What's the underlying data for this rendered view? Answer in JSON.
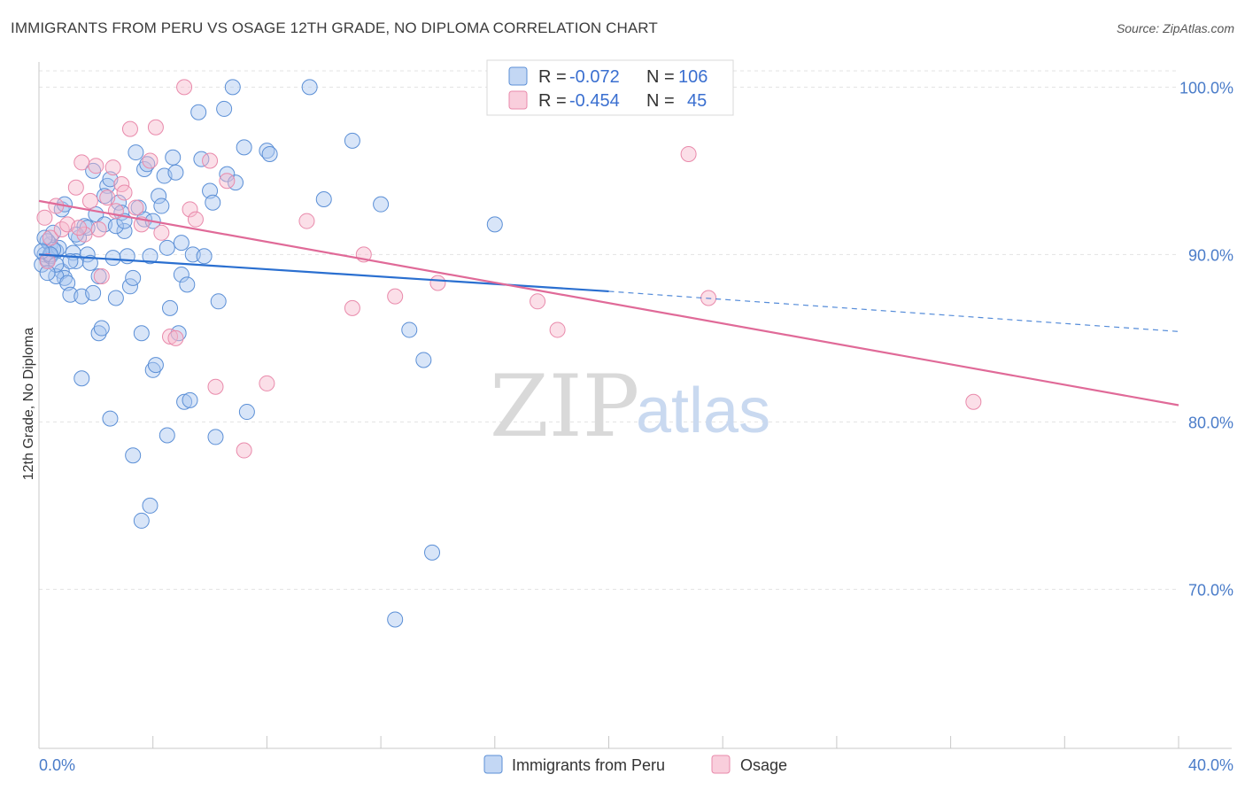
{
  "title": "IMMIGRANTS FROM PERU VS OSAGE 12TH GRADE, NO DIPLOMA CORRELATION CHART",
  "source": "Source: ZipAtlas.com",
  "watermark": {
    "zip": "ZIP",
    "atlas": "atlas"
  },
  "colors": {
    "blue_fill": "#a9c6f0",
    "blue_stroke": "#5b8fd6",
    "blue_line": "#2a6fd0",
    "pink_fill": "#f6b9cd",
    "pink_stroke": "#e98aab",
    "pink_line": "#e06a98",
    "grid": "#e3e3e3",
    "tick_text": "#4a7cc9"
  },
  "legend": {
    "rows": [
      {
        "r_label": "R =",
        "r_value": "-0.072",
        "n_label": "N =",
        "n_value": "106"
      },
      {
        "r_label": "R =",
        "r_value": "-0.454",
        "n_label": "N =",
        "n_value": "45"
      }
    ]
  },
  "bottom_legend": [
    "Immigrants from Peru",
    "Osage"
  ],
  "chart_data": {
    "type": "scatter",
    "xlabel": "",
    "ylabel": "12th Grade, No Diploma",
    "xlim": [
      0,
      40
    ],
    "ylim": [
      60.5,
      101.5
    ],
    "x_tick_labels": [
      "0.0%",
      "40.0%"
    ],
    "y_ticks": [
      70,
      80,
      90,
      100
    ],
    "y_tick_labels": [
      "70.0%",
      "80.0%",
      "90.0%",
      "100.0%"
    ],
    "grid": true,
    "series": [
      {
        "name": "Immigrants from Peru",
        "points": [
          [
            0.1,
            89.4
          ],
          [
            0.2,
            90.0
          ],
          [
            0.3,
            89.7
          ],
          [
            0.4,
            90.6
          ],
          [
            0.5,
            91.3
          ],
          [
            0.3,
            90.8
          ],
          [
            0.6,
            90.2
          ],
          [
            0.4,
            89.9
          ],
          [
            0.7,
            90.4
          ],
          [
            0.8,
            89.0
          ],
          [
            0.9,
            88.6
          ],
          [
            0.6,
            88.7
          ],
          [
            1.0,
            88.3
          ],
          [
            1.1,
            87.6
          ],
          [
            1.2,
            90.1
          ],
          [
            1.3,
            89.6
          ],
          [
            1.4,
            91.0
          ],
          [
            1.5,
            87.5
          ],
          [
            1.6,
            91.7
          ],
          [
            1.7,
            90.0
          ],
          [
            1.8,
            89.5
          ],
          [
            1.9,
            87.7
          ],
          [
            2.0,
            92.4
          ],
          [
            2.1,
            85.3
          ],
          [
            2.2,
            85.6
          ],
          [
            2.3,
            91.8
          ],
          [
            2.4,
            94.1
          ],
          [
            2.5,
            94.5
          ],
          [
            2.6,
            89.8
          ],
          [
            2.7,
            87.4
          ],
          [
            2.8,
            93.1
          ],
          [
            2.9,
            92.5
          ],
          [
            3.0,
            91.4
          ],
          [
            3.1,
            89.9
          ],
          [
            3.2,
            88.1
          ],
          [
            3.3,
            88.6
          ],
          [
            3.4,
            96.1
          ],
          [
            3.5,
            92.8
          ],
          [
            3.6,
            85.3
          ],
          [
            3.7,
            95.1
          ],
          [
            3.8,
            95.4
          ],
          [
            3.9,
            89.9
          ],
          [
            4.0,
            83.1
          ],
          [
            4.1,
            83.4
          ],
          [
            4.2,
            93.5
          ],
          [
            4.3,
            92.9
          ],
          [
            4.4,
            94.7
          ],
          [
            4.5,
            90.4
          ],
          [
            4.6,
            86.8
          ],
          [
            4.7,
            95.8
          ],
          [
            4.8,
            94.9
          ],
          [
            4.9,
            85.3
          ],
          [
            5.0,
            88.8
          ],
          [
            5.1,
            81.2
          ],
          [
            5.2,
            88.2
          ],
          [
            5.3,
            81.3
          ],
          [
            5.4,
            90.0
          ],
          [
            5.6,
            98.5
          ],
          [
            5.7,
            95.7
          ],
          [
            5.8,
            89.9
          ],
          [
            6.0,
            93.8
          ],
          [
            6.1,
            93.1
          ],
          [
            6.2,
            79.1
          ],
          [
            6.3,
            87.2
          ],
          [
            6.5,
            98.7
          ],
          [
            6.6,
            94.8
          ],
          [
            6.8,
            100.0
          ],
          [
            6.9,
            94.3
          ],
          [
            7.2,
            96.4
          ],
          [
            7.3,
            80.6
          ],
          [
            8.0,
            96.2
          ],
          [
            8.1,
            96.0
          ],
          [
            9.5,
            100.0
          ],
          [
            10.0,
            93.3
          ],
          [
            11.0,
            96.8
          ],
          [
            12.0,
            93.0
          ],
          [
            13.0,
            85.5
          ],
          [
            13.5,
            83.7
          ],
          [
            13.8,
            72.2
          ],
          [
            12.5,
            68.2
          ],
          [
            16.0,
            91.8
          ],
          [
            3.3,
            78.0
          ],
          [
            4.5,
            79.2
          ],
          [
            3.9,
            75.0
          ],
          [
            3.6,
            74.1
          ],
          [
            2.5,
            80.2
          ],
          [
            1.5,
            82.6
          ],
          [
            2.3,
            93.5
          ],
          [
            3.7,
            92.1
          ],
          [
            0.5,
            90.3
          ],
          [
            0.8,
            92.7
          ],
          [
            1.1,
            89.6
          ],
          [
            0.2,
            91.0
          ],
          [
            1.7,
            91.6
          ],
          [
            2.7,
            91.7
          ],
          [
            5.0,
            90.7
          ],
          [
            0.4,
            90.0
          ],
          [
            0.6,
            89.4
          ],
          [
            0.9,
            93.0
          ],
          [
            1.3,
            91.2
          ],
          [
            2.1,
            88.7
          ],
          [
            3.0,
            92.0
          ],
          [
            0.3,
            88.9
          ],
          [
            1.9,
            95.0
          ],
          [
            4.0,
            92.0
          ],
          [
            0.1,
            90.2
          ]
        ]
      },
      {
        "name": "Osage",
        "points": [
          [
            0.2,
            92.2
          ],
          [
            0.4,
            91.0
          ],
          [
            0.6,
            92.9
          ],
          [
            0.8,
            91.5
          ],
          [
            1.0,
            91.8
          ],
          [
            1.3,
            94.0
          ],
          [
            1.5,
            95.5
          ],
          [
            1.6,
            91.2
          ],
          [
            1.8,
            93.2
          ],
          [
            2.0,
            95.3
          ],
          [
            2.1,
            91.5
          ],
          [
            2.2,
            88.7
          ],
          [
            2.4,
            93.4
          ],
          [
            2.6,
            95.2
          ],
          [
            2.7,
            92.6
          ],
          [
            2.9,
            94.2
          ],
          [
            3.0,
            93.7
          ],
          [
            3.2,
            97.5
          ],
          [
            3.4,
            92.8
          ],
          [
            3.6,
            91.8
          ],
          [
            3.9,
            95.6
          ],
          [
            4.1,
            97.6
          ],
          [
            4.3,
            91.3
          ],
          [
            4.6,
            85.1
          ],
          [
            4.8,
            85.0
          ],
          [
            5.1,
            100.0
          ],
          [
            5.3,
            92.7
          ],
          [
            5.5,
            92.1
          ],
          [
            6.0,
            95.6
          ],
          [
            6.2,
            82.1
          ],
          [
            6.6,
            94.4
          ],
          [
            7.2,
            78.3
          ],
          [
            8.0,
            82.3
          ],
          [
            9.4,
            92.0
          ],
          [
            11.0,
            86.8
          ],
          [
            11.4,
            90.0
          ],
          [
            12.5,
            87.5
          ],
          [
            14.0,
            88.3
          ],
          [
            17.5,
            87.2
          ],
          [
            18.2,
            85.5
          ],
          [
            22.8,
            96.0
          ],
          [
            23.5,
            87.4
          ],
          [
            32.8,
            81.2
          ],
          [
            0.3,
            89.6
          ],
          [
            1.4,
            91.6
          ]
        ]
      }
    ],
    "trendlines": [
      {
        "series": "Immigrants from Peru",
        "x": [
          0,
          20
        ],
        "y": [
          90.0,
          87.8
        ],
        "dashed_extension_to": [
          40,
          85.4
        ]
      },
      {
        "series": "Osage",
        "x": [
          0,
          40
        ],
        "y": [
          93.2,
          81.0
        ]
      }
    ]
  }
}
